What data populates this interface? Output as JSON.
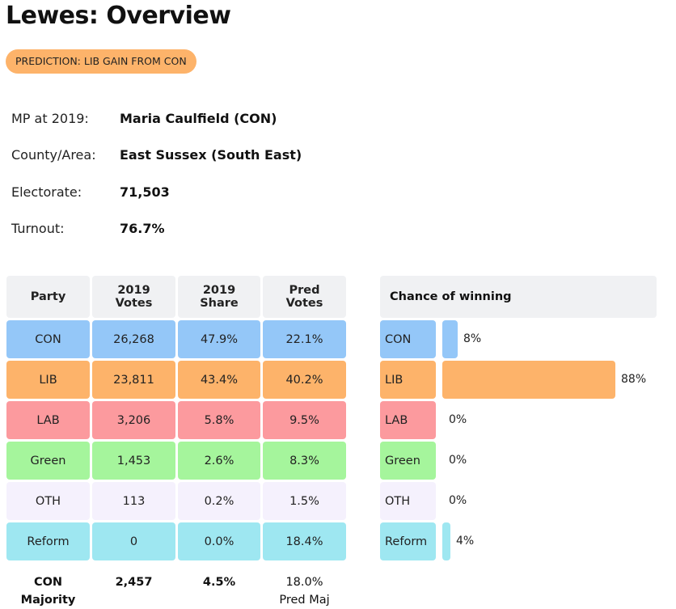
{
  "page_title": "Lewes: Overview",
  "prediction": {
    "label": "PREDICTION: LIB GAIN FROM CON",
    "color": "#fdb36a"
  },
  "info": [
    {
      "label": "MP at 2019:",
      "value": "Maria Caulfield  (CON)"
    },
    {
      "label": "County/Area:",
      "value": "East Sussex (South East)"
    },
    {
      "label": "Electorate:",
      "value": "71,503"
    },
    {
      "label": "Turnout:",
      "value": "76.7%"
    }
  ],
  "table": {
    "headers": {
      "party": "Party",
      "votes_l1": "2019",
      "votes_l2": "Votes",
      "share_l1": "2019",
      "share_l2": "Share",
      "pred_l1": "Pred",
      "pred_l2": "Votes"
    },
    "rows": [
      {
        "party": "CON",
        "votes": "26,268",
        "share": "47.9%",
        "pred": "22.1%",
        "color": "#94c7f8"
      },
      {
        "party": "LIB",
        "votes": "23,811",
        "share": "43.4%",
        "pred": "40.2%",
        "color": "#fdb36a"
      },
      {
        "party": "LAB",
        "votes": "3,206",
        "share": "5.8%",
        "pred": "9.5%",
        "color": "#fc9a9e"
      },
      {
        "party": "Green",
        "votes": "1,453",
        "share": "2.6%",
        "pred": "8.3%",
        "color": "#a5f59c"
      },
      {
        "party": "OTH",
        "votes": "113",
        "share": "0.2%",
        "pred": "1.5%",
        "color": "#f5f1fd"
      },
      {
        "party": "Reform",
        "votes": "0",
        "share": "0.0%",
        "pred": "18.4%",
        "color": "#9ee7f1"
      }
    ],
    "footer": {
      "party_l1": "CON",
      "party_l2": "Majority",
      "votes": "2,457",
      "share": "4.5%",
      "pred_l1": "18.0%",
      "pred_l2": "Pred Maj"
    }
  },
  "chance": {
    "header": "Chance of winning",
    "rows": [
      {
        "party": "CON",
        "percent": 8,
        "label": "8%",
        "color": "#94c7f8"
      },
      {
        "party": "LIB",
        "percent": 88,
        "label": "88%",
        "color": "#fdb36a"
      },
      {
        "party": "LAB",
        "percent": 0,
        "label": "0%",
        "color": "#fc9a9e"
      },
      {
        "party": "Green",
        "percent": 0,
        "label": "0%",
        "color": "#a5f59c"
      },
      {
        "party": "OTH",
        "percent": 0,
        "label": "0%",
        "color": "#f5f1fd"
      },
      {
        "party": "Reform",
        "percent": 4,
        "label": "4%",
        "color": "#9ee7f1"
      }
    ]
  }
}
